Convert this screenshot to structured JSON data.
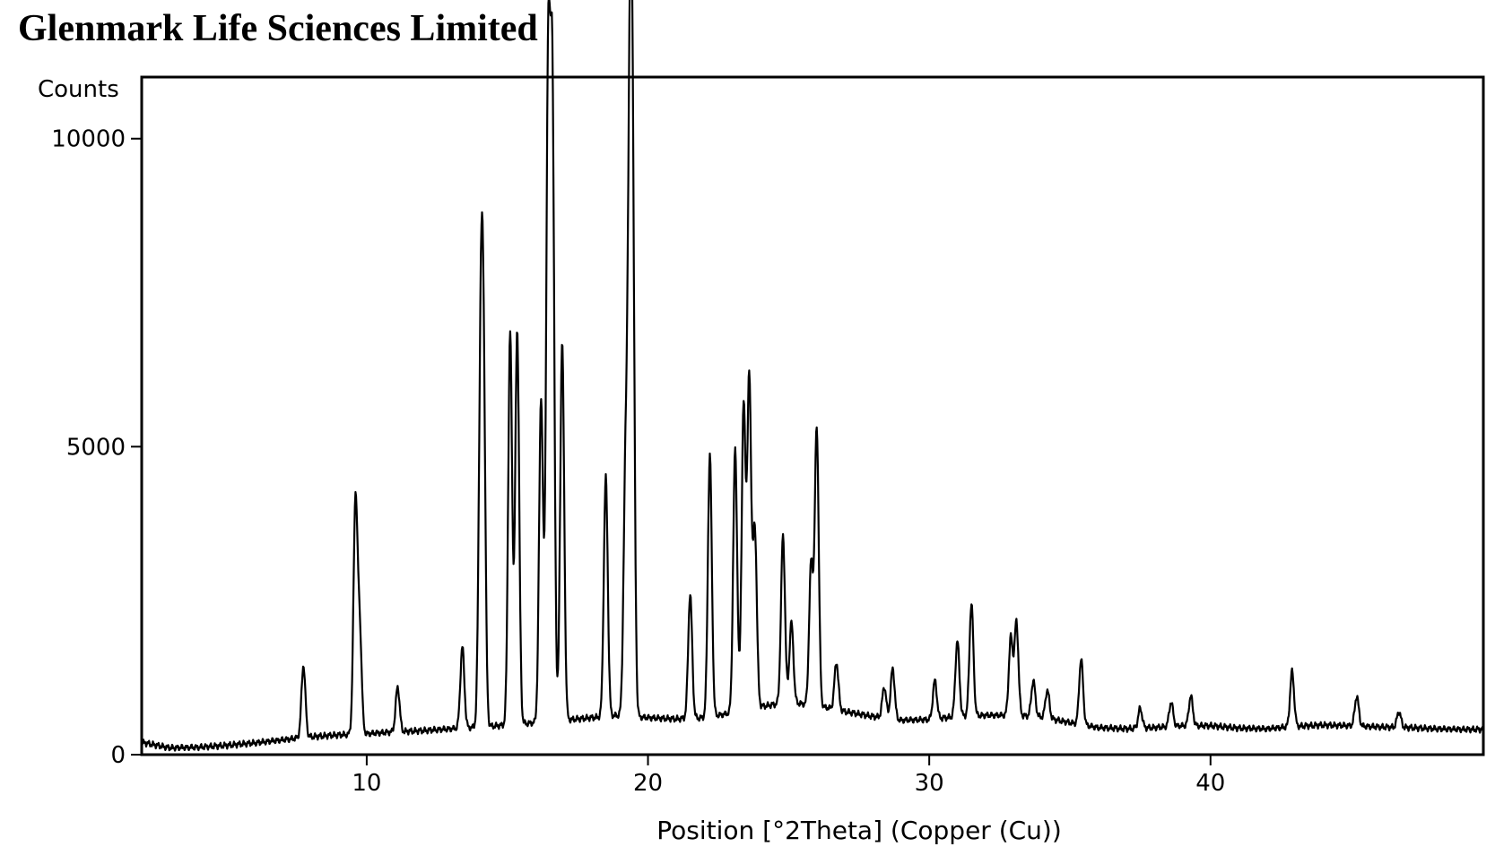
{
  "header": {
    "title": "Glenmark Life Sciences Limited"
  },
  "chart_data": {
    "type": "line",
    "title": "",
    "xlabel": "Position [°2Theta] (Copper (Cu))",
    "ylabel": "Counts",
    "xlim": [
      2.0,
      49.7
    ],
    "ylim": [
      0,
      11000
    ],
    "x_ticks": [
      10,
      20,
      30,
      40
    ],
    "y_ticks": [
      0,
      5000,
      10000
    ],
    "grid": false,
    "line_color": "#000000",
    "baseline": [
      [
        2.0,
        200
      ],
      [
        3.0,
        110
      ],
      [
        4.0,
        120
      ],
      [
        5.0,
        150
      ],
      [
        6.0,
        190
      ],
      [
        7.0,
        240
      ],
      [
        8.0,
        290
      ],
      [
        9.0,
        320
      ],
      [
        10.0,
        340
      ],
      [
        11.0,
        370
      ],
      [
        12.0,
        390
      ],
      [
        13.0,
        420
      ],
      [
        14.0,
        450
      ],
      [
        15.0,
        480
      ],
      [
        16.0,
        520
      ],
      [
        17.0,
        560
      ],
      [
        18.0,
        600
      ],
      [
        19.0,
        640
      ],
      [
        20.0,
        600
      ],
      [
        21.0,
        580
      ],
      [
        22.0,
        600
      ],
      [
        23.0,
        680
      ],
      [
        24.0,
        780
      ],
      [
        25.0,
        850
      ],
      [
        26.0,
        800
      ],
      [
        27.0,
        700
      ],
      [
        28.0,
        620
      ],
      [
        29.0,
        560
      ],
      [
        30.0,
        570
      ],
      [
        31.0,
        620
      ],
      [
        32.0,
        640
      ],
      [
        33.0,
        640
      ],
      [
        34.0,
        610
      ],
      [
        35.0,
        520
      ],
      [
        36.0,
        440
      ],
      [
        37.0,
        420
      ],
      [
        38.0,
        440
      ],
      [
        39.0,
        470
      ],
      [
        40.0,
        470
      ],
      [
        41.0,
        430
      ],
      [
        42.0,
        420
      ],
      [
        43.0,
        460
      ],
      [
        44.0,
        480
      ],
      [
        45.0,
        470
      ],
      [
        46.0,
        450
      ],
      [
        47.0,
        440
      ],
      [
        48.0,
        420
      ],
      [
        49.0,
        410
      ],
      [
        49.7,
        410
      ]
    ],
    "peaks": [
      {
        "x": 7.75,
        "y": 1450
      },
      {
        "x": 9.6,
        "y": 4100
      },
      {
        "x": 9.75,
        "y": 2000
      },
      {
        "x": 11.1,
        "y": 1100
      },
      {
        "x": 13.4,
        "y": 1750
      },
      {
        "x": 14.05,
        "y": 5800
      },
      {
        "x": 14.15,
        "y": 5850
      },
      {
        "x": 15.1,
        "y": 6850
      },
      {
        "x": 15.35,
        "y": 6900
      },
      {
        "x": 16.2,
        "y": 5800
      },
      {
        "x": 16.45,
        "y": 10900
      },
      {
        "x": 16.6,
        "y": 10600
      },
      {
        "x": 16.95,
        "y": 6700
      },
      {
        "x": 18.5,
        "y": 4500
      },
      {
        "x": 19.2,
        "y": 4450
      },
      {
        "x": 19.35,
        "y": 9050
      },
      {
        "x": 19.45,
        "y": 8800
      },
      {
        "x": 21.5,
        "y": 2600
      },
      {
        "x": 22.2,
        "y": 4850
      },
      {
        "x": 23.1,
        "y": 4950
      },
      {
        "x": 23.4,
        "y": 5650
      },
      {
        "x": 23.6,
        "y": 6100
      },
      {
        "x": 23.8,
        "y": 3650
      },
      {
        "x": 24.8,
        "y": 3550
      },
      {
        "x": 25.1,
        "y": 2150
      },
      {
        "x": 25.8,
        "y": 3100
      },
      {
        "x": 26.0,
        "y": 5300
      },
      {
        "x": 26.7,
        "y": 1500
      },
      {
        "x": 28.4,
        "y": 1100
      },
      {
        "x": 28.7,
        "y": 1400
      },
      {
        "x": 30.2,
        "y": 1200
      },
      {
        "x": 31.0,
        "y": 1850
      },
      {
        "x": 31.5,
        "y": 2450
      },
      {
        "x": 32.9,
        "y": 1900
      },
      {
        "x": 33.1,
        "y": 2150
      },
      {
        "x": 33.7,
        "y": 1200
      },
      {
        "x": 34.2,
        "y": 1050
      },
      {
        "x": 35.4,
        "y": 1550
      },
      {
        "x": 37.5,
        "y": 750
      },
      {
        "x": 38.6,
        "y": 850
      },
      {
        "x": 39.3,
        "y": 950
      },
      {
        "x": 42.9,
        "y": 1350
      },
      {
        "x": 45.2,
        "y": 950
      },
      {
        "x": 46.7,
        "y": 700
      }
    ]
  }
}
